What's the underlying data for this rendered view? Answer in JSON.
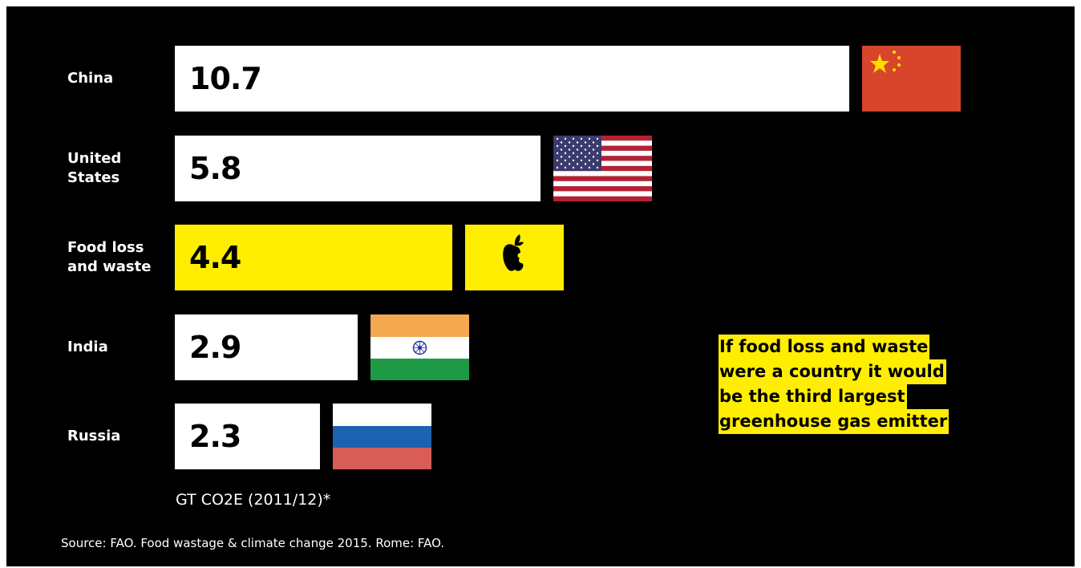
{
  "chart_data": {
    "type": "bar",
    "orientation": "horizontal",
    "categories": [
      "China",
      "United States",
      "Food loss and waste",
      "India",
      "Russia"
    ],
    "values": [
      10.7,
      5.8,
      4.4,
      2.9,
      2.3
    ],
    "value_labels": [
      "10.7",
      "5.8",
      "4.4",
      "2.9",
      "2.3"
    ],
    "category_lines": [
      [
        "China"
      ],
      [
        "United",
        "States"
      ],
      [
        "Food loss",
        "and waste"
      ],
      [
        "India"
      ],
      [
        "Russia"
      ]
    ],
    "highlight_category": "Food loss and waste",
    "unit_label": "GT CO2E (2011/12)*",
    "grid": false,
    "colors": {
      "background": "#000000",
      "bar": "#ffffff",
      "highlight": "#ffee00",
      "text": "#ffffff"
    },
    "icons": [
      "china-flag",
      "united-states-flag",
      "apple-icon",
      "india-flag",
      "russia-flag"
    ]
  },
  "callout": {
    "lines": [
      "If food loss and waste",
      "were a country it would",
      "be the third largest",
      "greenhouse gas emitter"
    ]
  },
  "source": "Source: FAO. Food wastage & climate change 2015. Rome: FAO."
}
